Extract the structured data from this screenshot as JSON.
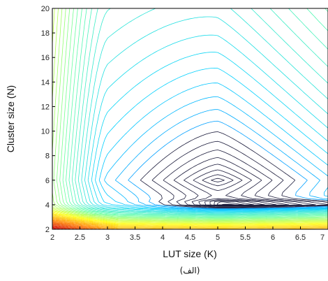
{
  "chart_data": {
    "type": "contour",
    "xlabel": "LUT size (K)",
    "ylabel": "Cluster size (N)",
    "caption": "(الف)",
    "xlim": [
      2,
      7
    ],
    "ylim": [
      2,
      20
    ],
    "xticks": [
      "2",
      "2.5",
      "3",
      "3.5",
      "4",
      "4.5",
      "5",
      "5.5",
      "6",
      "6.5",
      "7"
    ],
    "yticks": [
      "2",
      "4",
      "6",
      "8",
      "10",
      "12",
      "14",
      "16",
      "18",
      "20"
    ],
    "grid": false,
    "colormap": [
      "#00008f",
      "#0060ff",
      "#00d0ff",
      "#60ffa0",
      "#ffff00",
      "#ff8000",
      "#d00000"
    ],
    "minimum": {
      "K": 5,
      "N": 6
    },
    "contour_levels": 60
  }
}
